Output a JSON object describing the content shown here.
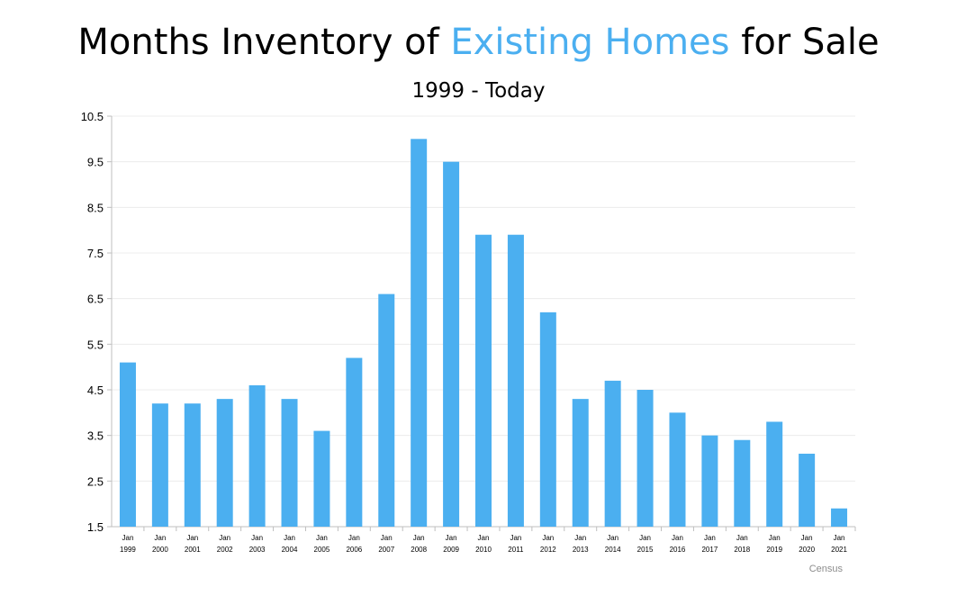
{
  "chart_data": {
    "type": "bar",
    "title_parts": [
      "Months Inventory of ",
      "Existing Homes",
      " for Sale"
    ],
    "subtitle": "1999 - Today",
    "source": "Census",
    "categories": [
      [
        "Jan",
        "1999"
      ],
      [
        "Jan",
        "2000"
      ],
      [
        "Jan",
        "2001"
      ],
      [
        "Jan",
        "2002"
      ],
      [
        "Jan",
        "2003"
      ],
      [
        "Jan",
        "2004"
      ],
      [
        "Jan",
        "2005"
      ],
      [
        "Jan",
        "2006"
      ],
      [
        "Jan",
        "2007"
      ],
      [
        "Jan",
        "2008"
      ],
      [
        "Jan",
        "2009"
      ],
      [
        "Jan",
        "2010"
      ],
      [
        "Jan",
        "2011"
      ],
      [
        "Jan",
        "2012"
      ],
      [
        "Jan",
        "2013"
      ],
      [
        "Jan",
        "2014"
      ],
      [
        "Jan",
        "2015"
      ],
      [
        "Jan",
        "2016"
      ],
      [
        "Jan",
        "2017"
      ],
      [
        "Jan",
        "2018"
      ],
      [
        "Jan",
        "2019"
      ],
      [
        "Jan",
        "2020"
      ],
      [
        "Jan",
        "2021"
      ]
    ],
    "values": [
      5.1,
      4.2,
      4.2,
      4.3,
      4.6,
      4.3,
      3.6,
      5.2,
      6.6,
      10.0,
      9.5,
      7.9,
      7.9,
      6.2,
      4.3,
      4.7,
      4.5,
      4.0,
      3.5,
      3.4,
      3.8,
      3.1,
      1.9
    ],
    "yticks": [
      "1.5",
      "2.5",
      "3.5",
      "4.5",
      "5.5",
      "6.5",
      "7.5",
      "8.5",
      "9.5",
      "10.5"
    ],
    "ylim": [
      1.5,
      10.5
    ],
    "grid": true,
    "legend": "none",
    "colors": {
      "bar": "#4BAFF0",
      "title_accent": "#4BAFF0",
      "grid": "#ececec",
      "axis": "#bfbfbf"
    }
  }
}
